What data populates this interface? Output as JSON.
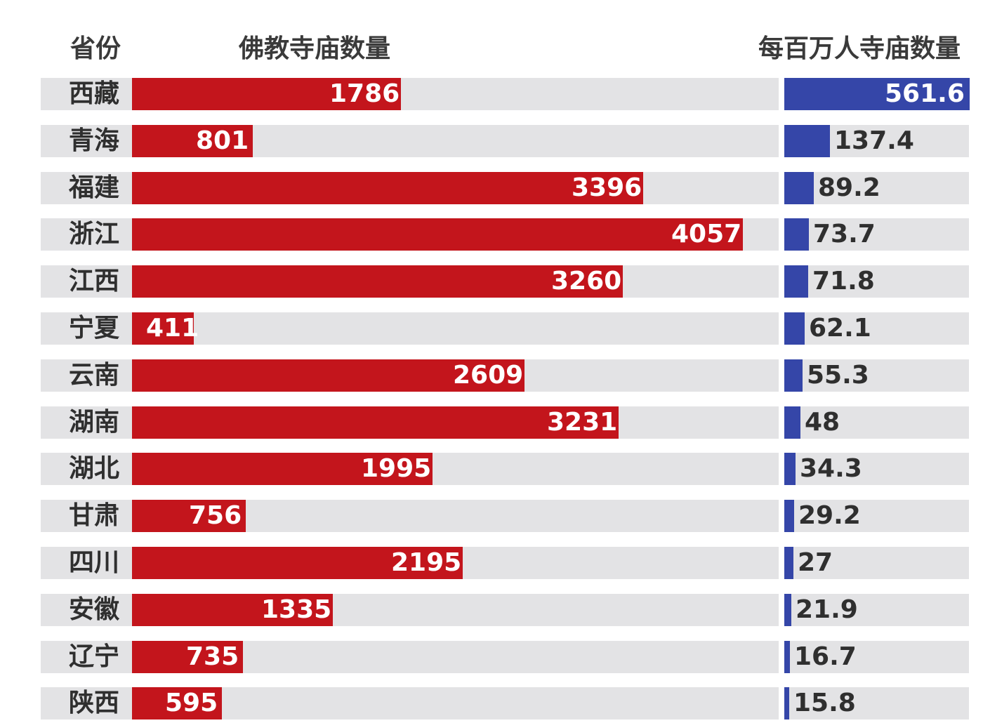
{
  "header": {
    "province_label": "省份",
    "temples_label": "佛教寺庙数量",
    "per_million_label": "每百万人寺庙数量"
  },
  "chart_data": [
    {
      "type": "bar",
      "orientation": "horizontal",
      "ylabel": "省份",
      "title": "佛教寺庙数量",
      "categories": [
        "西藏",
        "青海",
        "福建",
        "浙江",
        "江西",
        "宁夏",
        "云南",
        "湖南",
        "湖北",
        "甘肃",
        "四川",
        "安徽",
        "辽宁",
        "陕西"
      ],
      "values": [
        1786,
        801,
        3396,
        4057,
        3260,
        411,
        2609,
        3231,
        1995,
        756,
        2195,
        1335,
        735,
        595
      ],
      "color": "#c3151c",
      "labels_inside": true
    },
    {
      "type": "bar",
      "orientation": "horizontal",
      "title": "每百万人寺庙数量",
      "categories": [
        "西藏",
        "青海",
        "福建",
        "浙江",
        "江西",
        "宁夏",
        "云南",
        "湖南",
        "湖北",
        "甘肃",
        "四川",
        "安徽",
        "辽宁",
        "陕西"
      ],
      "values": [
        561.6,
        137.4,
        89.2,
        73.7,
        71.8,
        62.1,
        55.3,
        48,
        34.3,
        29.2,
        27,
        21.9,
        16.7,
        15.8
      ],
      "color": "#3546a8"
    }
  ]
}
